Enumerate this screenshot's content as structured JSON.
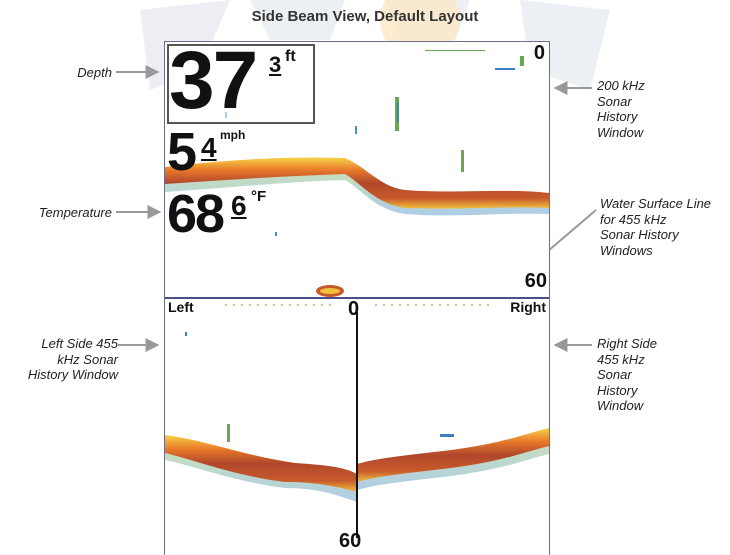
{
  "title": "Side Beam View, Default Layout",
  "readouts": {
    "depth": {
      "whole": "37",
      "decimal": "3",
      "unit": "ft"
    },
    "speed": {
      "whole": "5",
      "decimal": "4",
      "unit": "mph"
    },
    "temperature": {
      "whole": "68",
      "decimal": "6",
      "unit": "°F"
    }
  },
  "scales": {
    "top_window_top": "0",
    "top_window_bottom": "60",
    "bottom_window_top": "0",
    "bottom_window_bottom": "60",
    "left_label": "Left",
    "right_label": "Right"
  },
  "callouts": {
    "depth": "Depth",
    "temperature": "Temperature",
    "sonar_200khz": "200 kHz\nSonar\nHistory\nWindow",
    "water_surface": "Water Surface Line\nfor 455 kHz\nSonar History\nWindows",
    "left_455": "Left Side 455\nkHz Sonar\nHistory Window",
    "right_455": "Right Side\n455 kHz\nSonar\nHistory\nWindow"
  },
  "colors": {
    "frame": "#6b6e8a",
    "seabed_core": "#b0472b",
    "seabed_edge": "#e8a22a",
    "fish_green": "#6aa84f",
    "fish_blue": "#3d7fc0",
    "leader": "#999999"
  }
}
